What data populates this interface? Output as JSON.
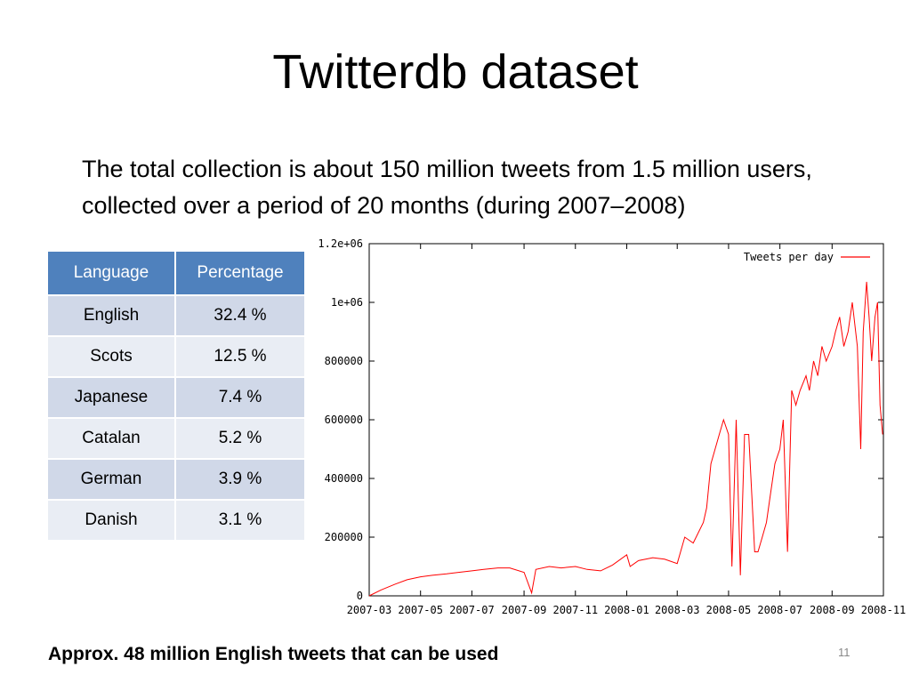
{
  "slide": {
    "title": "Twitterdb dataset",
    "body": "The total collection is about 150 million tweets from 1.5 million users, collected over a period of 20 months (during 2007–2008)",
    "footer_note": "Approx. 48 million English tweets that can be used",
    "page_number": "11"
  },
  "table": {
    "headers": [
      "Language",
      "Percentage"
    ],
    "rows": [
      [
        "English",
        "32.4 %"
      ],
      [
        "Scots",
        "12.5 %"
      ],
      [
        "Japanese",
        "7.4 %"
      ],
      [
        "Catalan",
        "5.2 %"
      ],
      [
        "German",
        "3.9 %"
      ],
      [
        "Danish",
        "3.1 %"
      ]
    ],
    "header_color": "#4f81bd",
    "row_colors": [
      "#d0d8e8",
      "#e9edf4"
    ]
  },
  "chart_data": {
    "type": "line",
    "title": "",
    "xlabel": "",
    "ylabel": "",
    "xlim": [
      "2007-03",
      "2008-11"
    ],
    "ylim": [
      0,
      1200000
    ],
    "xticks": [
      "2007-03",
      "2007-05",
      "2007-07",
      "2007-09",
      "2007-11",
      "2008-01",
      "2008-03",
      "2008-05",
      "2008-07",
      "2008-09",
      "2008-11"
    ],
    "ytick_labels": [
      "0",
      "200000",
      "400000",
      "600000",
      "800000",
      "1e+06",
      "1.2e+06"
    ],
    "grid": false,
    "legend": "top-right",
    "series": [
      {
        "name": "Tweets per day",
        "color": "#ff0000",
        "x": [
          "2007-03-01",
          "2007-03-15",
          "2007-04-01",
          "2007-04-15",
          "2007-05-01",
          "2007-05-15",
          "2007-06-01",
          "2007-06-15",
          "2007-07-01",
          "2007-07-15",
          "2007-08-01",
          "2007-08-15",
          "2007-09-01",
          "2007-09-10",
          "2007-09-15",
          "2007-10-01",
          "2007-10-15",
          "2007-11-01",
          "2007-11-15",
          "2007-12-01",
          "2007-12-15",
          "2008-01-01",
          "2008-01-05",
          "2008-01-15",
          "2008-02-01",
          "2008-02-15",
          "2008-03-01",
          "2008-03-10",
          "2008-03-20",
          "2008-04-01",
          "2008-04-05",
          "2008-04-10",
          "2008-04-15",
          "2008-04-20",
          "2008-04-25",
          "2008-05-01",
          "2008-05-05",
          "2008-05-10",
          "2008-05-15",
          "2008-05-20",
          "2008-05-25",
          "2008-06-01",
          "2008-06-05",
          "2008-06-10",
          "2008-06-15",
          "2008-06-20",
          "2008-06-25",
          "2008-07-01",
          "2008-07-05",
          "2008-07-10",
          "2008-07-15",
          "2008-07-20",
          "2008-07-25",
          "2008-08-01",
          "2008-08-05",
          "2008-08-10",
          "2008-08-15",
          "2008-08-20",
          "2008-08-25",
          "2008-09-01",
          "2008-09-05",
          "2008-09-10",
          "2008-09-15",
          "2008-09-20",
          "2008-09-25",
          "2008-10-01",
          "2008-10-05",
          "2008-10-08",
          "2008-10-12",
          "2008-10-15",
          "2008-10-18",
          "2008-10-22",
          "2008-10-25",
          "2008-10-28",
          "2008-10-31"
        ],
        "y": [
          0,
          20000,
          40000,
          55000,
          65000,
          70000,
          75000,
          80000,
          85000,
          90000,
          95000,
          95000,
          80000,
          10000,
          90000,
          100000,
          95000,
          100000,
          90000,
          85000,
          105000,
          140000,
          100000,
          120000,
          130000,
          125000,
          110000,
          200000,
          180000,
          250000,
          300000,
          450000,
          500000,
          550000,
          600000,
          550000,
          100000,
          600000,
          70000,
          550000,
          550000,
          150000,
          150000,
          200000,
          250000,
          350000,
          450000,
          500000,
          600000,
          150000,
          700000,
          650000,
          700000,
          750000,
          700000,
          800000,
          750000,
          850000,
          800000,
          850000,
          900000,
          950000,
          850000,
          900000,
          1000000,
          850000,
          500000,
          900000,
          1070000,
          950000,
          800000,
          950000,
          1000000,
          650000,
          550000
        ]
      }
    ]
  }
}
